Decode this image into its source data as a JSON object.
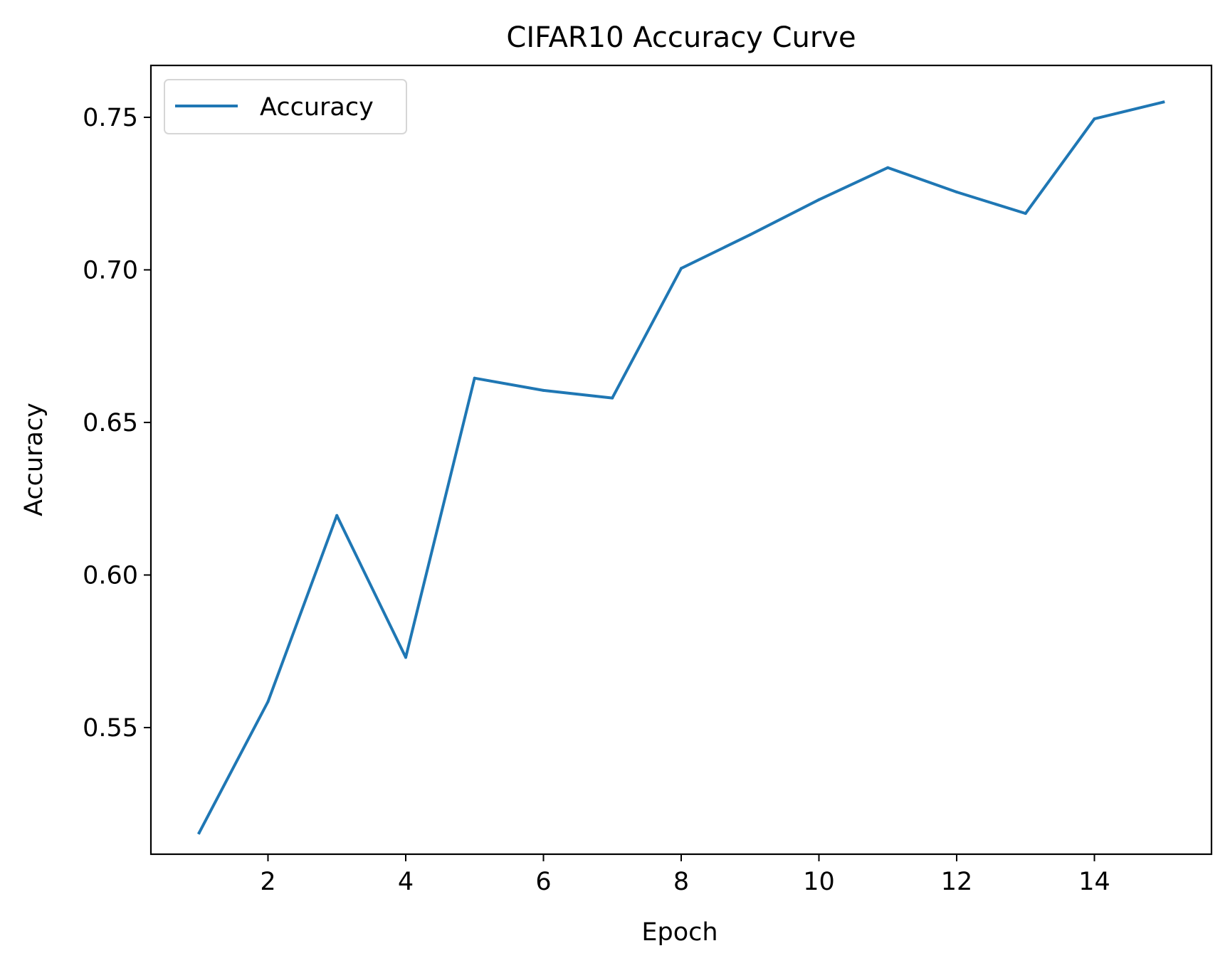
{
  "chart_data": {
    "type": "line",
    "title": "CIFAR10 Accuracy Curve",
    "xlabel": "Epoch",
    "ylabel": "Accuracy",
    "x": [
      1,
      2,
      3,
      4,
      5,
      6,
      7,
      8,
      9,
      10,
      11,
      12,
      13,
      14,
      15
    ],
    "series": [
      {
        "name": "Accuracy",
        "color": "#1f77b4",
        "values": [
          0.5155,
          0.5585,
          0.6195,
          0.573,
          0.6645,
          0.6605,
          0.658,
          0.7005,
          0.7115,
          0.723,
          0.7335,
          0.7255,
          0.7185,
          0.7495,
          0.755
        ]
      }
    ],
    "xlim": [
      0.3,
      15.7
    ],
    "ylim": [
      0.5085,
      0.767
    ],
    "xticks": [
      2,
      4,
      6,
      8,
      10,
      12,
      14
    ],
    "xtick_labels": [
      "2",
      "4",
      "6",
      "8",
      "10",
      "12",
      "14"
    ],
    "yticks": [
      0.55,
      0.6,
      0.65,
      0.7,
      0.75
    ],
    "ytick_labels": [
      "0.55",
      "0.60",
      "0.65",
      "0.70",
      "0.75"
    ],
    "grid": false,
    "legend": "upper-left"
  }
}
